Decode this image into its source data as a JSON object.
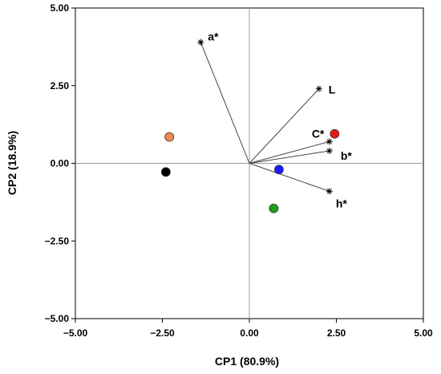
{
  "chart_data": {
    "type": "scatter",
    "title": "",
    "xlabel": "CP1 (80.9%)",
    "ylabel": "CP2 (18.9%)",
    "xlim": [
      -5,
      5
    ],
    "ylim": [
      -5,
      5
    ],
    "x_ticks": [
      -5,
      -2.5,
      0,
      2.5,
      5
    ],
    "y_ticks": [
      -5,
      -2.5,
      0,
      2.5,
      5
    ],
    "x_tick_labels": [
      "−5.00",
      "−2.50",
      "0.00",
      "2.50",
      "5.00"
    ],
    "y_tick_labels": [
      "−5.00",
      "−2.50",
      "0.00",
      "2.50",
      "5.00"
    ],
    "grid": false,
    "reference_lines": [
      0,
      0
    ],
    "vectors": [
      {
        "label": "a*",
        "x": -1.4,
        "y": 3.9
      },
      {
        "label": "L",
        "x": 2.0,
        "y": 2.4
      },
      {
        "label": "C*",
        "x": 2.3,
        "y": 0.7
      },
      {
        "label": "b*",
        "x": 2.3,
        "y": 0.4
      },
      {
        "label": "h*",
        "x": 2.3,
        "y": -0.9
      }
    ],
    "points": [
      {
        "x": -2.3,
        "y": 0.85,
        "color": "#f08a50"
      },
      {
        "x": -2.4,
        "y": -0.28,
        "color": "#000000"
      },
      {
        "x": 0.85,
        "y": -0.2,
        "color": "#1a1aff"
      },
      {
        "x": 0.7,
        "y": -1.45,
        "color": "#1aa01a"
      },
      {
        "x": 2.45,
        "y": 0.95,
        "color": "#e61919"
      }
    ]
  }
}
